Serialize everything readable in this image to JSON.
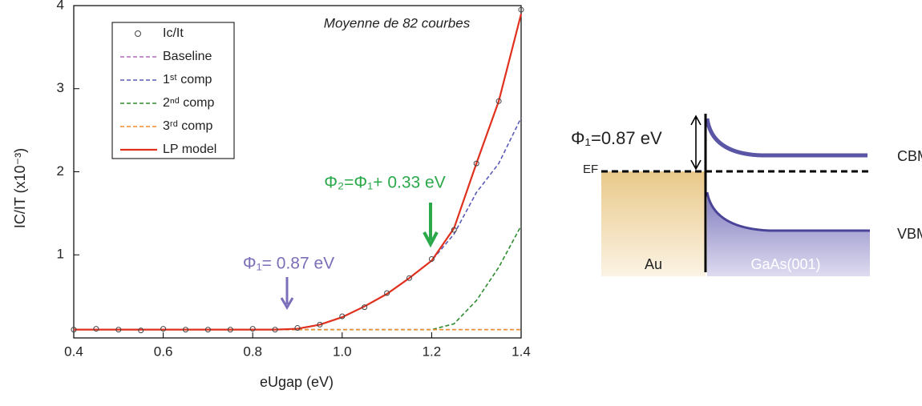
{
  "chart_data": {
    "type": "line",
    "annotations": [
      "Moyenne de 82 courbes",
      "Φ₁= 0.87 eV",
      "Φ₂=Φ₁+ 0.33 eV"
    ],
    "xlabel": "eUgap (eV)",
    "ylabel": "IC/IT (x10⁻³)",
    "x": [
      0.4,
      0.45,
      0.5,
      0.55,
      0.6,
      0.65,
      0.7,
      0.75,
      0.8,
      0.85,
      0.9,
      0.95,
      1.0,
      1.05,
      1.1,
      1.15,
      1.2,
      1.25,
      1.3,
      1.35,
      1.4
    ],
    "xlim": [
      0.4,
      1.4
    ],
    "xticks": [
      0.4,
      0.6,
      0.8,
      {
        "value": 1,
        "label": "1.0"
      },
      1.2,
      1.4
    ],
    "ylim": [
      0,
      4
    ],
    "yticks": [
      1,
      2,
      3,
      4
    ],
    "series": [
      {
        "name": "Ic/It",
        "color": "#444444",
        "style": "markers",
        "values": [
          0.1,
          0.11,
          0.1,
          0.09,
          0.11,
          0.1,
          0.1,
          0.1,
          0.11,
          0.1,
          0.12,
          0.16,
          0.26,
          0.37,
          0.54,
          0.72,
          0.95,
          1.3,
          2.1,
          2.85,
          3.95
        ]
      },
      {
        "name": "Baseline",
        "color": "#b06ab3",
        "style": "dashed",
        "values": [
          0.1,
          0.1,
          0.1,
          0.1,
          0.1,
          0.1,
          0.1,
          0.1,
          0.1,
          0.1,
          0.1,
          0.1,
          0.1,
          0.1,
          0.1,
          0.1,
          0.1,
          0.1,
          0.1,
          0.1,
          0.1
        ]
      },
      {
        "name": "1ˢᵗ comp",
        "color": "#5a5ab8",
        "style": "dashed",
        "values": [
          0.1,
          0.1,
          0.1,
          0.1,
          0.1,
          0.1,
          0.1,
          0.1,
          0.1,
          0.1,
          0.11,
          0.16,
          0.25,
          0.38,
          0.53,
          0.72,
          0.93,
          1.25,
          1.75,
          2.1,
          2.65
        ]
      },
      {
        "name": "2ⁿᵈ comp",
        "color": "#2e8b2e",
        "style": "dashed",
        "values": [
          0.1,
          0.1,
          0.1,
          0.1,
          0.1,
          0.1,
          0.1,
          0.1,
          0.1,
          0.1,
          0.1,
          0.1,
          0.1,
          0.1,
          0.1,
          0.1,
          0.1,
          0.17,
          0.45,
          0.85,
          1.35
        ]
      },
      {
        "name": "3ʳᵈ comp",
        "color": "#f28c28",
        "style": "dashed",
        "values": [
          0.1,
          0.1,
          0.1,
          0.1,
          0.1,
          0.1,
          0.1,
          0.1,
          0.1,
          0.1,
          0.1,
          0.1,
          0.1,
          0.1,
          0.1,
          0.1,
          0.1,
          0.1,
          0.1,
          0.1,
          0.1
        ]
      },
      {
        "name": "LP model",
        "color": "#e0301e",
        "style": "solid",
        "values": [
          0.1,
          0.1,
          0.1,
          0.1,
          0.1,
          0.1,
          0.1,
          0.1,
          0.1,
          0.1,
          0.11,
          0.16,
          0.25,
          0.38,
          0.53,
          0.72,
          0.93,
          1.32,
          2.1,
          2.85,
          3.9
        ]
      }
    ]
  },
  "diagram": {
    "barrier_label": "Φ₁=0.87 eV",
    "fermi_label": "EF",
    "cbm_label": "CBM",
    "vbm_label": "VBM",
    "metal_label": "Au",
    "semiconductor_label": "GaAs(001)"
  }
}
